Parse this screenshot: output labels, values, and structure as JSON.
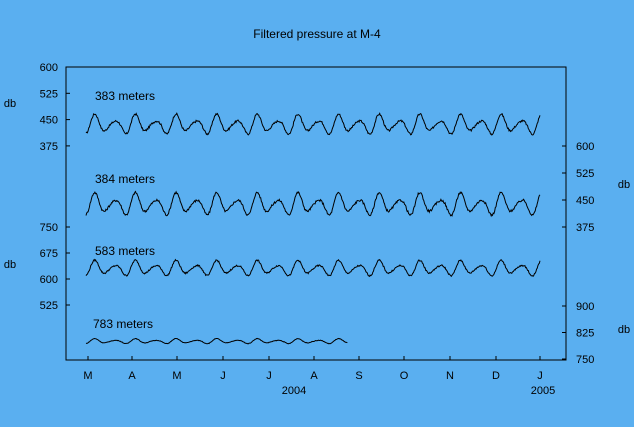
{
  "colors": {
    "background": "#5aaff0",
    "line": "#000000",
    "axis": "#000000"
  },
  "chart_data": {
    "type": "line",
    "title": "Filtered pressure at M-4",
    "x_axis": {
      "month_labels": [
        "M",
        "A",
        "M",
        "J",
        "J",
        "A",
        "S",
        "O",
        "N",
        "D",
        "J"
      ],
      "year_labels": [
        "2004",
        "2005"
      ],
      "xlim_days": [
        0,
        330
      ]
    },
    "units": {
      "left": "db",
      "right": "db"
    },
    "axes": [
      {
        "side": "left",
        "ticks": [
          600,
          525,
          450,
          375
        ],
        "unit_label": "db"
      },
      {
        "side": "right",
        "ticks": [
          600,
          525,
          450,
          375
        ],
        "unit_label": "db"
      },
      {
        "side": "left",
        "ticks": [
          750,
          675,
          600,
          525
        ],
        "unit_label": "db"
      },
      {
        "side": "right",
        "ticks": [
          900,
          825,
          750
        ],
        "unit_label": "db"
      }
    ],
    "series": [
      {
        "name": "383 meters",
        "axis": 0,
        "x_range_days": [
          0,
          330
        ],
        "center": 435,
        "amp": 32,
        "mid_values": [
          400,
          500
        ]
      },
      {
        "name": "384 meters",
        "axis": 1,
        "x_range_days": [
          0,
          330
        ],
        "center": 437,
        "amp": 35,
        "mid_values": [
          380,
          560
        ]
      },
      {
        "name": "583 meters",
        "axis": 2,
        "x_range_days": [
          0,
          330
        ],
        "center": 630,
        "amp": 25,
        "mid_values": [
          600,
          680
        ]
      },
      {
        "name": "783 meters",
        "axis": 3,
        "x_range_days": [
          0,
          190
        ],
        "center": 800,
        "amp": 8,
        "mid_values": [
          795,
          815
        ]
      }
    ]
  }
}
